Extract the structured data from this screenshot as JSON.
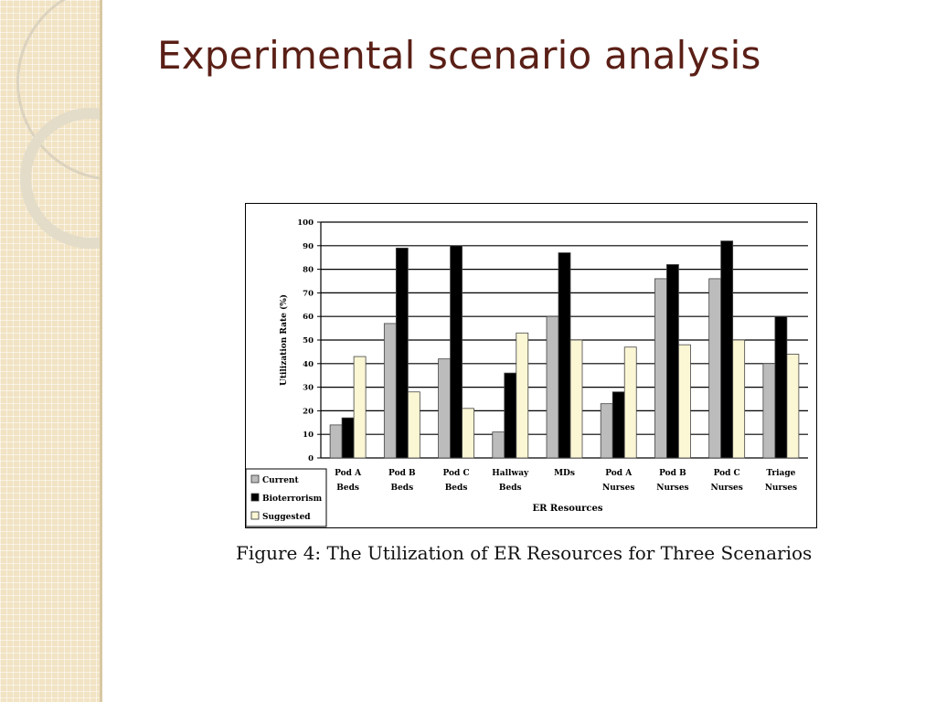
{
  "slide": {
    "title": "Experimental scenario analysis",
    "caption": "Figure 4: The Utilization of ER Resources for Three Scenarios"
  },
  "chart_data": {
    "type": "bar",
    "title": "",
    "xlabel": "ER Resources",
    "ylabel": "Utilization Rate (%)",
    "ylim": [
      0,
      100
    ],
    "yticks": [
      0,
      10,
      20,
      30,
      40,
      50,
      60,
      70,
      80,
      90,
      100
    ],
    "grid": true,
    "legend_position": "bottom-left",
    "categories": [
      [
        "Pod A",
        "Beds"
      ],
      [
        "Pod B",
        "Beds"
      ],
      [
        "Pod C",
        "Beds"
      ],
      [
        "Hallway",
        "Beds"
      ],
      [
        "MDs",
        ""
      ],
      [
        "Pod A",
        "Nurses"
      ],
      [
        "Pod B",
        "Nurses"
      ],
      [
        "Pod C",
        "Nurses"
      ],
      [
        "Triage",
        "Nurses"
      ]
    ],
    "series": [
      {
        "name": "Current",
        "fill": "#bcbcbc",
        "values": [
          14,
          57,
          42,
          11,
          60,
          23,
          76,
          76,
          40
        ]
      },
      {
        "name": "Bioterrorism",
        "fill": "#000000",
        "values": [
          17,
          89,
          90,
          36,
          87,
          28,
          82,
          92,
          60
        ]
      },
      {
        "name": "Suggested",
        "fill": "#fbf6d4",
        "values": [
          43,
          28,
          21,
          53,
          50,
          47,
          48,
          50,
          44
        ]
      }
    ]
  }
}
